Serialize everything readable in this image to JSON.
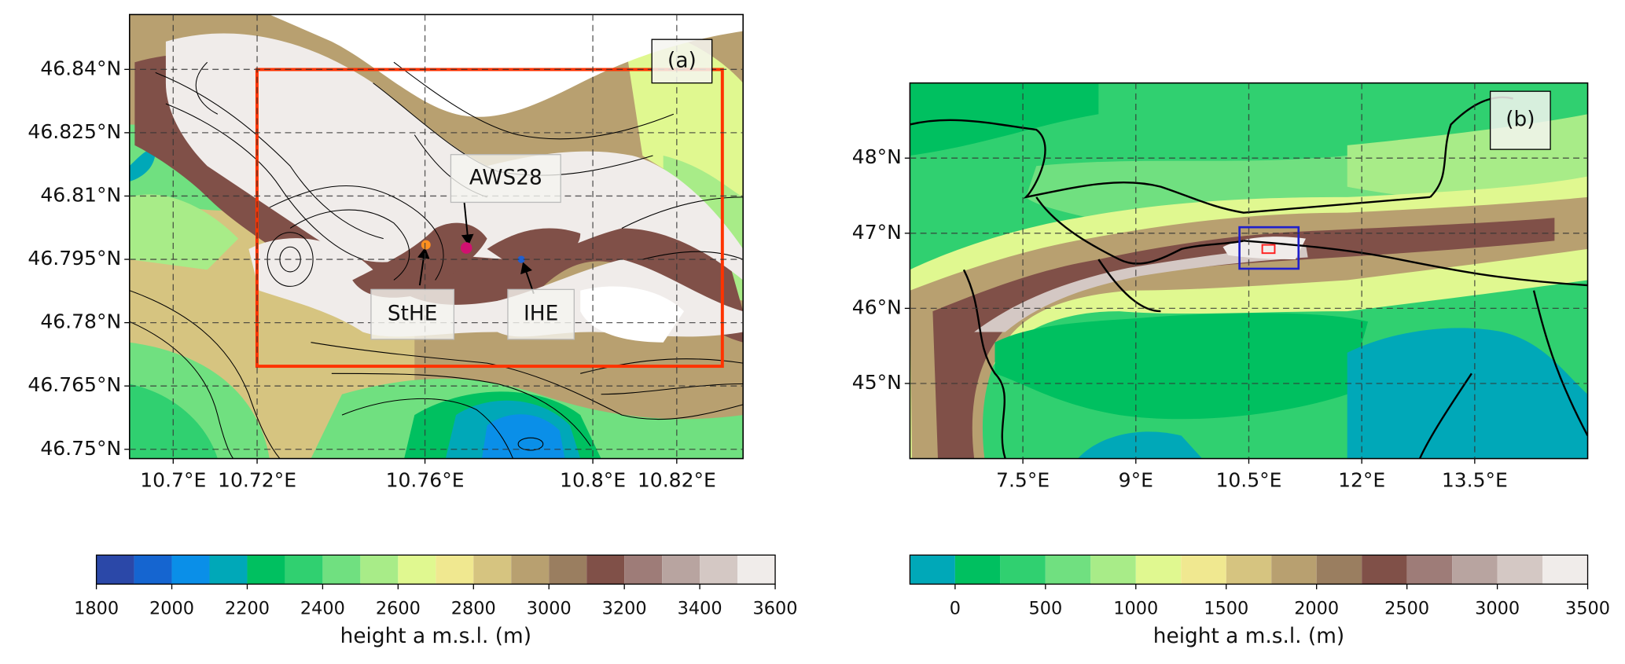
{
  "panels": [
    {
      "label": "(a)",
      "xlim": [
        10.6896,
        10.8358
      ],
      "ylim": [
        46.7478,
        46.853
      ],
      "xticks": [
        {
          "value": 10.7,
          "label": "10.7°E"
        },
        {
          "value": 10.72,
          "label": "10.72°E"
        },
        {
          "value": 10.76,
          "label": "10.76°E"
        },
        {
          "value": 10.8,
          "label": "10.8°E"
        },
        {
          "value": 10.82,
          "label": "10.82°E"
        }
      ],
      "yticks": [
        {
          "value": 46.75,
          "label": "46.75°N"
        },
        {
          "value": 46.765,
          "label": "46.765°N"
        },
        {
          "value": 46.78,
          "label": "46.78°N"
        },
        {
          "value": 46.795,
          "label": "46.795°N"
        },
        {
          "value": 46.81,
          "label": "46.81°N"
        },
        {
          "value": 46.825,
          "label": "46.825°N"
        },
        {
          "value": 46.84,
          "label": "46.84°N"
        }
      ],
      "annotations": [
        "AWS28",
        "StHE",
        "IHE"
      ]
    },
    {
      "label": "(b)",
      "xlim": [
        6,
        15
      ],
      "ylim": [
        44,
        49
      ],
      "xticks": [
        {
          "value": 7.5,
          "label": "7.5°E"
        },
        {
          "value": 9,
          "label": "9°E"
        },
        {
          "value": 10.5,
          "label": "10.5°E"
        },
        {
          "value": 12,
          "label": "12°E"
        },
        {
          "value": 13.5,
          "label": "13.5°E"
        }
      ],
      "yticks": [
        {
          "value": 45,
          "label": "45°N"
        },
        {
          "value": 46,
          "label": "46°N"
        },
        {
          "value": 47,
          "label": "47°N"
        },
        {
          "value": 48,
          "label": "48°N"
        }
      ],
      "annotations": []
    }
  ],
  "colorbars": [
    {
      "label": "height a m.s.l. (m)",
      "levels": [
        1800,
        1900,
        2000,
        2100,
        2200,
        2300,
        2400,
        2500,
        2600,
        2700,
        2800,
        2900,
        3000,
        3100,
        3200,
        3300,
        3400,
        3500,
        3600
      ],
      "colors": [
        "#2b48a8",
        "#1565d0",
        "#0a8fe8",
        "#00a8b8",
        "#00c060",
        "#30d070",
        "#70e080",
        "#a8ec88",
        "#e0f890",
        "#f0e890",
        "#d6c480",
        "#b8a070",
        "#9a7e60",
        "#805048",
        "#9e7c78",
        "#b8a4a0",
        "#d4c8c4",
        "#f0ecea"
      ],
      "ticks": [
        1800,
        2000,
        2200,
        2400,
        2600,
        2800,
        3000,
        3200,
        3400,
        3600
      ]
    },
    {
      "label": "height a m.s.l. (m)",
      "levels": [
        -250,
        0,
        250,
        500,
        750,
        1000,
        1250,
        1500,
        1750,
        2000,
        2250,
        2500,
        2750,
        3000,
        3250,
        3500
      ],
      "colors": [
        "#00a8b8",
        "#00c060",
        "#30d070",
        "#70e080",
        "#a8ec88",
        "#e0f890",
        "#f0e890",
        "#d6c480",
        "#b8a070",
        "#9a7e60",
        "#805048",
        "#9e7c78",
        "#b8a4a0",
        "#d4c8c4",
        "#f0ecea"
      ],
      "ticks": [
        0,
        500,
        1000,
        1500,
        2000,
        2500,
        3000,
        3500
      ]
    }
  ]
}
